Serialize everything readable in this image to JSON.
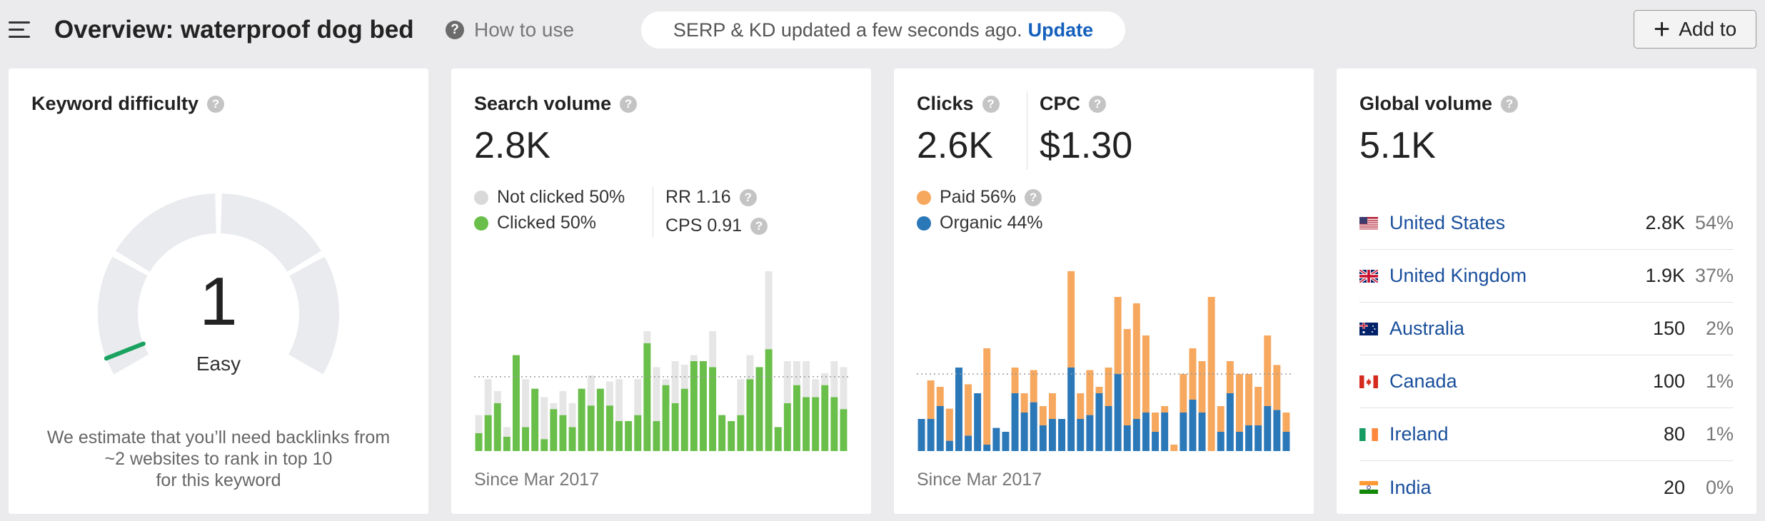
{
  "header": {
    "title": "Overview: waterproof dog bed",
    "how_to_use": "How to use",
    "serp_status": "SERP & KD updated a few seconds ago.",
    "update_label": "Update",
    "add_to_label": "Add to"
  },
  "help_glyph": "?",
  "keyword_difficulty": {
    "title": "Keyword difficulty",
    "value": "1",
    "rating": "Easy",
    "description_lines": [
      "We estimate that you’ll need backlinks from",
      "~2 websites to rank in top 10",
      "for this keyword"
    ],
    "score": 1,
    "gauge_color": "#e9ebee",
    "indicator_color": "#1aa260"
  },
  "search_volume": {
    "title": "Search volume",
    "value": "2.8K",
    "legend": [
      {
        "label": "Not clicked 50%",
        "color": "#d9d9d9"
      },
      {
        "label": "Clicked 50%",
        "color": "#6abf4b"
      }
    ],
    "rr": "RR 1.16",
    "cps": "CPS 0.91",
    "since": "Since Mar 2017"
  },
  "clicks": {
    "clicks_title": "Clicks",
    "clicks_value": "2.6K",
    "cpc_title": "CPC",
    "cpc_value": "$1.30",
    "legend": [
      {
        "label": "Paid 56%",
        "color": "#f7a85f"
      },
      {
        "label": "Organic 44%",
        "color": "#2b78b8"
      }
    ],
    "since": "Since Mar 2017"
  },
  "global_volume": {
    "title": "Global volume",
    "value": "5.1K",
    "countries": [
      {
        "name": "United States",
        "volume": "2.8K",
        "percent": "54%",
        "flag": "us"
      },
      {
        "name": "United Kingdom",
        "volume": "1.9K",
        "percent": "37%",
        "flag": "uk"
      },
      {
        "name": "Australia",
        "volume": "150",
        "percent": "2%",
        "flag": "au"
      },
      {
        "name": "Canada",
        "volume": "100",
        "percent": "1%",
        "flag": "ca"
      },
      {
        "name": "Ireland",
        "volume": "80",
        "percent": "1%",
        "flag": "ie"
      },
      {
        "name": "India",
        "volume": "20",
        "percent": "0%",
        "flag": "in"
      }
    ]
  },
  "chart_data": [
    {
      "type": "bar",
      "stacked": true,
      "average_line": 62,
      "ylim": [
        0,
        150
      ],
      "series": [
        {
          "name": "Clicked",
          "color": "#6abf4b",
          "values": [
            15,
            30,
            40,
            12,
            80,
            20,
            52,
            10,
            35,
            30,
            20,
            52,
            38,
            52,
            38,
            25,
            25,
            30,
            90,
            25,
            55,
            40,
            52,
            75,
            75,
            70,
            30,
            25,
            30,
            60,
            70,
            85,
            20,
            40,
            55,
            45,
            45,
            55,
            45,
            35
          ]
        },
        {
          "name": "Not clicked",
          "color": "#e6e6e6",
          "values": [
            15,
            30,
            10,
            8,
            0,
            40,
            0,
            35,
            5,
            20,
            20,
            0,
            25,
            0,
            20,
            35,
            0,
            30,
            10,
            45,
            5,
            35,
            20,
            5,
            0,
            30,
            0,
            0,
            30,
            20,
            0,
            65,
            0,
            35,
            20,
            30,
            15,
            10,
            30,
            35
          ]
        }
      ]
    },
    {
      "type": "bar",
      "stacked": true,
      "average_line": 60,
      "ylim": [
        0,
        140
      ],
      "series": [
        {
          "name": "Organic",
          "color": "#2b78b8",
          "values": [
            25,
            25,
            35,
            8,
            65,
            12,
            45,
            5,
            18,
            15,
            45,
            30,
            38,
            20,
            25,
            25,
            65,
            25,
            28,
            45,
            35,
            60,
            20,
            25,
            30,
            15,
            30,
            0,
            30,
            40,
            30,
            0,
            15,
            45,
            15,
            20,
            20,
            35,
            32,
            15
          ]
        },
        {
          "name": "Paid",
          "color": "#f7a85f",
          "values": [
            0,
            30,
            15,
            25,
            0,
            40,
            0,
            75,
            0,
            0,
            20,
            15,
            25,
            15,
            20,
            0,
            75,
            20,
            35,
            5,
            30,
            60,
            75,
            90,
            60,
            15,
            5,
            5,
            30,
            40,
            40,
            120,
            20,
            25,
            45,
            40,
            30,
            55,
            35,
            15
          ]
        }
      ]
    }
  ]
}
